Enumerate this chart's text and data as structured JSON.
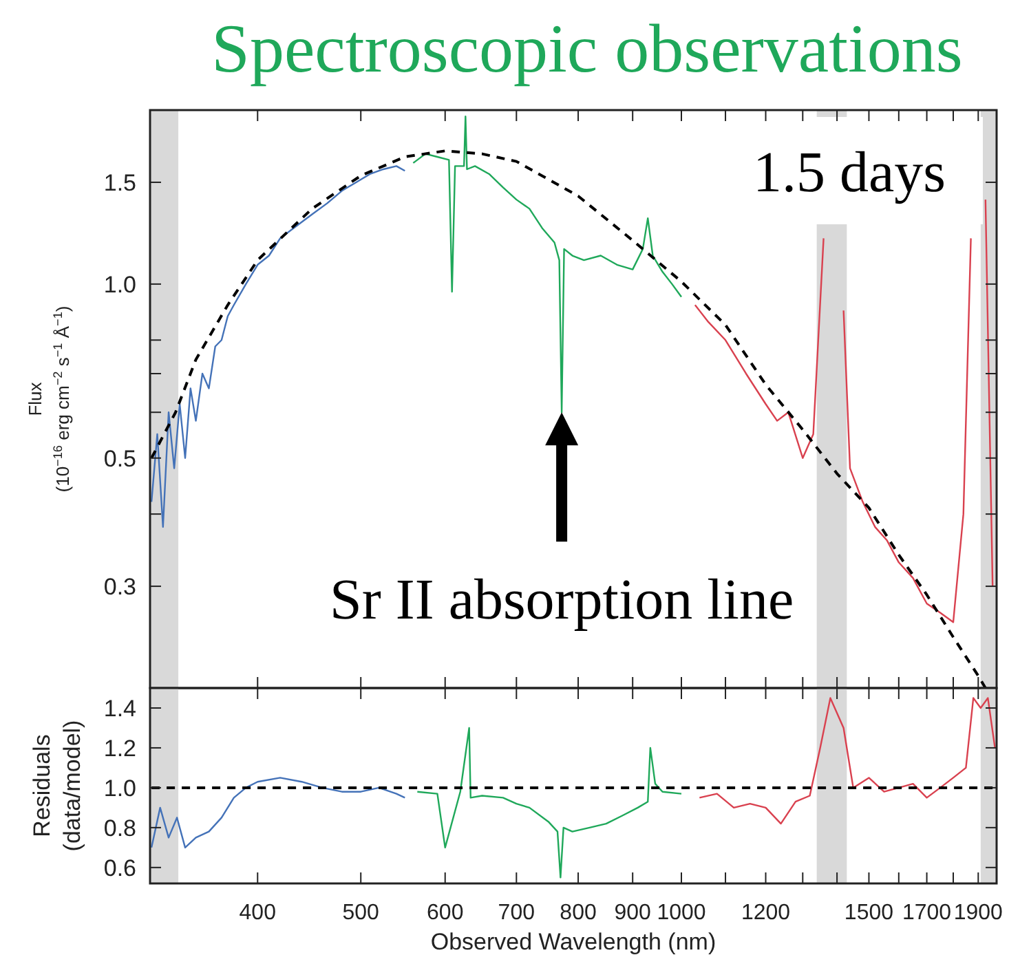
{
  "chart_data": [
    {
      "type": "line",
      "title": "Spectroscopic observations",
      "ylabel": "Flux (10$^{−16}$ erg cm$^{−2}$ s$^{−1}$ Å$^{−1}$)",
      "log": "xy",
      "tick_labels": "y",
      "grid": false,
      "xlim": [
        317,
        1977
      ],
      "ylim": [
        0.2,
        2.0
      ],
      "xticks": [
        {
          "value": 400,
          "label": null
        },
        {
          "value": 500,
          "label": null
        },
        {
          "value": 600,
          "label": null
        },
        {
          "value": 700,
          "label": null
        },
        {
          "value": 800,
          "label": null
        },
        {
          "value": 900,
          "label": null
        },
        {
          "value": 1000,
          "label": null
        },
        {
          "value": 1100,
          "label": null
        },
        {
          "value": 1200,
          "label": null
        },
        {
          "value": 1300,
          "label": null
        },
        {
          "value": 1400,
          "label": null
        },
        {
          "value": 1500,
          "label": null
        },
        {
          "value": 1600,
          "label": null
        },
        {
          "value": 1700,
          "label": null
        },
        {
          "value": 1800,
          "label": null
        },
        {
          "value": 1900,
          "label": null
        }
      ],
      "yticks": [
        0.3,
        {
          "value": 0.4,
          "label": null
        },
        0.5,
        {
          "value": 0.6,
          "label": null
        },
        {
          "value": 0.7,
          "label": null
        },
        {
          "value": 0.8,
          "label": null
        },
        {
          "value": 1,
          "label": "1.0"
        },
        1.5
      ],
      "bands": [
        {
          "axis": "x",
          "from": 317,
          "to": 337,
          "color": "#d9d9d9"
        },
        {
          "axis": "x",
          "from": 1340,
          "to": 1430,
          "color": "#d9d9d9"
        },
        {
          "axis": "x",
          "from": 1910,
          "to": 1977,
          "color": "#d9d9d9"
        }
      ],
      "annotations": [
        "1.5 days",
        {
          "text": "Sr II absorption line",
          "x": 772,
          "y": 0.6
        }
      ],
      "series": [
        {
          "color": "#4472b8",
          "x": [
            318,
            322,
            326,
            330,
            334,
            338,
            342,
            346,
            350,
            355,
            360,
            365,
            370,
            375,
            380,
            390,
            400,
            410,
            420,
            435,
            450,
            465,
            480,
            495,
            510,
            525,
            540,
            550
          ],
          "values": [
            0.42,
            0.55,
            0.38,
            0.6,
            0.48,
            0.62,
            0.5,
            0.66,
            0.58,
            0.7,
            0.66,
            0.78,
            0.8,
            0.88,
            0.92,
            1.0,
            1.08,
            1.12,
            1.2,
            1.26,
            1.32,
            1.38,
            1.45,
            1.5,
            1.55,
            1.58,
            1.6,
            1.57
          ]
        },
        {
          "color": "#1fa85a",
          "x": [
            560,
            575,
            590,
            605,
            609,
            613,
            625,
            627,
            629,
            640,
            660,
            680,
            700,
            720,
            740,
            760,
            768,
            772,
            776,
            790,
            810,
            840,
            870,
            900,
            920,
            930,
            940,
            960,
            980,
            1000
          ],
          "values": [
            1.62,
            1.68,
            1.66,
            1.64,
            0.97,
            1.6,
            1.6,
            1.95,
            1.58,
            1.6,
            1.55,
            1.47,
            1.4,
            1.35,
            1.25,
            1.18,
            1.1,
            0.6,
            1.15,
            1.12,
            1.1,
            1.12,
            1.08,
            1.06,
            1.15,
            1.3,
            1.12,
            1.05,
            1.0,
            0.95
          ]
        },
        {
          "color": "#d9414f",
          "x": [
            1030,
            1060,
            1100,
            1150,
            1200,
            1230,
            1260,
            1300,
            1330,
            1360,
            1380,
            1400,
            1420,
            1440,
            1480,
            1520,
            1560,
            1600,
            1650,
            1700,
            1750,
            1800,
            1840,
            1870,
            1900,
            1930,
            1960
          ],
          "values": [
            0.92,
            0.86,
            0.8,
            0.7,
            0.62,
            0.58,
            0.6,
            0.5,
            0.55,
            1.2,
            null,
            null,
            0.9,
            0.48,
            0.42,
            0.38,
            0.36,
            0.33,
            0.31,
            0.28,
            0.27,
            0.26,
            0.4,
            1.2,
            null,
            1.4,
            0.3
          ]
        },
        {
          "color": "#000000",
          "line_style": "dashed",
          "x": [
            318,
            335,
            350,
            375,
            400,
            450,
            500,
            550,
            600,
            650,
            700,
            800,
            900,
            1000,
            1100,
            1200,
            1300,
            1400,
            1500,
            1600,
            1700,
            1800,
            1900,
            1930
          ],
          "values": [
            0.5,
            0.6,
            0.74,
            0.92,
            1.1,
            1.35,
            1.54,
            1.66,
            1.7,
            1.68,
            1.63,
            1.42,
            1.19,
            1.01,
            0.85,
            0.67,
            0.56,
            0.47,
            0.41,
            0.34,
            0.29,
            0.245,
            0.21,
            0.2
          ]
        }
      ]
    },
    {
      "type": "line",
      "xlabel": "Observed Wavelength (nm)",
      "ylabel": "Residuals (data/model)",
      "log": "x",
      "grid": false,
      "xlim": [
        317,
        1977
      ],
      "ylim": [
        0.52,
        1.5
      ],
      "xticks": [
        400,
        500,
        600,
        700,
        800,
        900,
        1000,
        {
          "value": 1100,
          "label": null
        },
        1200,
        {
          "value": 1300,
          "label": null
        },
        {
          "value": 1400,
          "label": null
        },
        1500,
        {
          "value": 1600,
          "label": null
        },
        1700,
        {
          "value": 1800,
          "label": null
        },
        1900
      ],
      "yticks": [
        0.6,
        0.8,
        {
          "value": 1,
          "label": "1.0"
        },
        1.2,
        1.4
      ],
      "bands": [
        {
          "axis": "x",
          "from": 317,
          "to": 337,
          "color": "#d9d9d9"
        },
        {
          "axis": "x",
          "from": 1340,
          "to": 1430,
          "color": "#d9d9d9"
        },
        {
          "axis": "x",
          "from": 1910,
          "to": 1977,
          "color": "#d9d9d9"
        }
      ],
      "series": [
        {
          "color": "#4472b8",
          "x": [
            318,
            324,
            330,
            336,
            342,
            350,
            360,
            370,
            380,
            390,
            400,
            420,
            440,
            460,
            480,
            500,
            520,
            540,
            550
          ],
          "values": [
            0.7,
            0.9,
            0.75,
            0.85,
            0.7,
            0.75,
            0.78,
            0.85,
            0.95,
            1.0,
            1.03,
            1.05,
            1.03,
            1.0,
            0.98,
            0.98,
            1.0,
            0.97,
            0.95
          ]
        },
        {
          "color": "#1fa85a",
          "x": [
            565,
            590,
            600,
            620,
            632,
            634,
            650,
            680,
            700,
            720,
            750,
            765,
            770,
            775,
            790,
            820,
            850,
            880,
            910,
            930,
            935,
            945,
            960,
            1000
          ],
          "values": [
            0.98,
            0.97,
            0.7,
            0.98,
            1.3,
            0.95,
            0.96,
            0.95,
            0.92,
            0.9,
            0.83,
            0.78,
            0.55,
            0.8,
            0.78,
            0.8,
            0.82,
            0.86,
            0.9,
            0.93,
            1.2,
            1.02,
            0.98,
            0.97
          ]
        },
        {
          "color": "#d9414f",
          "x": [
            1040,
            1080,
            1120,
            1160,
            1200,
            1240,
            1280,
            1320,
            1350,
            1380,
            1420,
            1450,
            1500,
            1550,
            1600,
            1650,
            1700,
            1750,
            1800,
            1850,
            1880,
            1910,
            1940,
            1970
          ],
          "values": [
            0.95,
            0.97,
            0.9,
            0.92,
            0.9,
            0.82,
            0.93,
            0.96,
            1.2,
            1.45,
            1.3,
            1.0,
            1.05,
            0.98,
            1.0,
            1.02,
            0.95,
            1.0,
            1.05,
            1.1,
            1.45,
            1.4,
            1.45,
            1.2
          ]
        },
        {
          "color": "#000000",
          "line_style": "dashed",
          "x": [
            318,
            1975
          ],
          "values": [
            1,
            1
          ]
        }
      ]
    }
  ]
}
